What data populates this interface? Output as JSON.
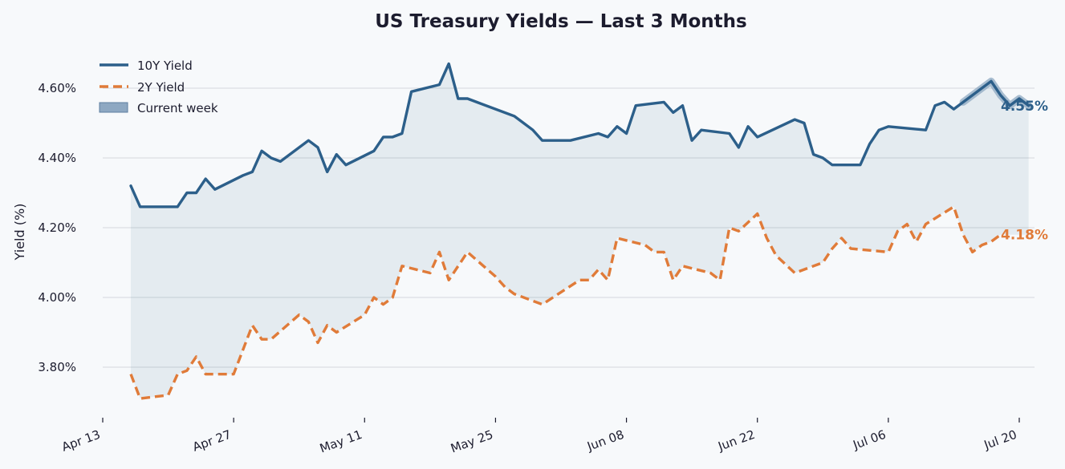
{
  "chart_data": {
    "type": "line",
    "title": "US Treasury Yields — Last 3 Months",
    "xlabel": "",
    "ylabel": "Yield (%)",
    "ylim": [
      3.665,
      4.705
    ],
    "xlim": [
      "2025-04-11",
      "2025-07-21"
    ],
    "x_ticks": [
      "2025-04-13",
      "2025-04-27",
      "2025-05-11",
      "2025-05-25",
      "2025-06-08",
      "2025-06-22",
      "2025-07-06",
      "2025-07-20"
    ],
    "x_tick_labels": [
      "Apr 13",
      "Apr 27",
      "May 11",
      "May 25",
      "Jun 08",
      "Jun 22",
      "Jul 06",
      "Jul 20"
    ],
    "y_ticks": [
      3.8,
      4.0,
      4.2,
      4.4,
      4.6
    ],
    "y_tick_labels": [
      "3.80%",
      "4.00%",
      "4.20%",
      "4.40%",
      "4.60%"
    ],
    "grid": "horizontal",
    "legend_position": "top-left",
    "shade_between_series": true,
    "series": [
      {
        "name": "10Y Yield",
        "color": "#2c5f8a",
        "style": "solid",
        "end_label": "4.55%",
        "points": [
          [
            "2025-04-16",
            4.32
          ],
          [
            "2025-04-17",
            4.26
          ],
          [
            "2025-04-18",
            4.26
          ],
          [
            "2025-04-21",
            4.26
          ],
          [
            "2025-04-22",
            4.3
          ],
          [
            "2025-04-23",
            4.3
          ],
          [
            "2025-04-24",
            4.34
          ],
          [
            "2025-04-25",
            4.31
          ],
          [
            "2025-04-28",
            4.35
          ],
          [
            "2025-04-29",
            4.36
          ],
          [
            "2025-04-30",
            4.42
          ],
          [
            "2025-05-01",
            4.4
          ],
          [
            "2025-05-02",
            4.39
          ],
          [
            "2025-05-05",
            4.45
          ],
          [
            "2025-05-06",
            4.43
          ],
          [
            "2025-05-07",
            4.36
          ],
          [
            "2025-05-08",
            4.41
          ],
          [
            "2025-05-09",
            4.38
          ],
          [
            "2025-05-12",
            4.42
          ],
          [
            "2025-05-13",
            4.46
          ],
          [
            "2025-05-14",
            4.46
          ],
          [
            "2025-05-15",
            4.47
          ],
          [
            "2025-05-16",
            4.59
          ],
          [
            "2025-05-19",
            4.61
          ],
          [
            "2025-05-20",
            4.67
          ],
          [
            "2025-05-21",
            4.57
          ],
          [
            "2025-05-22",
            4.57
          ],
          [
            "2025-05-23",
            4.56
          ],
          [
            "2025-05-27",
            4.52
          ],
          [
            "2025-05-28",
            4.5
          ],
          [
            "2025-05-29",
            4.48
          ],
          [
            "2025-05-30",
            4.45
          ],
          [
            "2025-06-02",
            4.45
          ],
          [
            "2025-06-05",
            4.47
          ],
          [
            "2025-06-06",
            4.46
          ],
          [
            "2025-06-07",
            4.49
          ],
          [
            "2025-06-08",
            4.47
          ],
          [
            "2025-06-09",
            4.55
          ],
          [
            "2025-06-12",
            4.56
          ],
          [
            "2025-06-13",
            4.53
          ],
          [
            "2025-06-14",
            4.55
          ],
          [
            "2025-06-15",
            4.45
          ],
          [
            "2025-06-16",
            4.48
          ],
          [
            "2025-06-19",
            4.47
          ],
          [
            "2025-06-20",
            4.43
          ],
          [
            "2025-06-21",
            4.49
          ],
          [
            "2025-06-22",
            4.46
          ],
          [
            "2025-06-26",
            4.51
          ],
          [
            "2025-06-27",
            4.5
          ],
          [
            "2025-06-28",
            4.41
          ],
          [
            "2025-06-29",
            4.4
          ],
          [
            "2025-06-30",
            4.38
          ],
          [
            "2025-07-03",
            4.38
          ],
          [
            "2025-07-04",
            4.44
          ],
          [
            "2025-07-05",
            4.48
          ],
          [
            "2025-07-06",
            4.49
          ],
          [
            "2025-07-10",
            4.48
          ],
          [
            "2025-07-11",
            4.55
          ],
          [
            "2025-07-12",
            4.56
          ],
          [
            "2025-07-13",
            4.54
          ],
          [
            "2025-07-14",
            4.56
          ],
          [
            "2025-07-17",
            4.62
          ],
          [
            "2025-07-18",
            4.58
          ],
          [
            "2025-07-19",
            4.55
          ],
          [
            "2025-07-20",
            4.57
          ],
          [
            "2025-07-21",
            4.55
          ]
        ]
      },
      {
        "name": "2Y Yield",
        "color": "#e07b39",
        "style": "dashed",
        "end_label": "4.18%",
        "points": [
          [
            "2025-04-16",
            3.78
          ],
          [
            "2025-04-17",
            3.71
          ],
          [
            "2025-04-20",
            3.72
          ],
          [
            "2025-04-21",
            3.78
          ],
          [
            "2025-04-22",
            3.79
          ],
          [
            "2025-04-23",
            3.83
          ],
          [
            "2025-04-24",
            3.78
          ],
          [
            "2025-04-27",
            3.78
          ],
          [
            "2025-04-28",
            3.85
          ],
          [
            "2025-04-29",
            3.92
          ],
          [
            "2025-04-30",
            3.88
          ],
          [
            "2025-05-01",
            3.88
          ],
          [
            "2025-05-04",
            3.95
          ],
          [
            "2025-05-05",
            3.93
          ],
          [
            "2025-05-06",
            3.87
          ],
          [
            "2025-05-07",
            3.92
          ],
          [
            "2025-05-08",
            3.9
          ],
          [
            "2025-05-11",
            3.95
          ],
          [
            "2025-05-12",
            4.0
          ],
          [
            "2025-05-13",
            3.98
          ],
          [
            "2025-05-14",
            4.0
          ],
          [
            "2025-05-15",
            4.09
          ],
          [
            "2025-05-18",
            4.07
          ],
          [
            "2025-05-19",
            4.13
          ],
          [
            "2025-05-20",
            4.05
          ],
          [
            "2025-05-22",
            4.13
          ],
          [
            "2025-05-25",
            4.06
          ],
          [
            "2025-05-26",
            4.03
          ],
          [
            "2025-05-27",
            4.01
          ],
          [
            "2025-05-30",
            3.98
          ],
          [
            "2025-06-03",
            4.05
          ],
          [
            "2025-06-04",
            4.05
          ],
          [
            "2025-06-05",
            4.08
          ],
          [
            "2025-06-06",
            4.05
          ],
          [
            "2025-06-07",
            4.17
          ],
          [
            "2025-06-10",
            4.15
          ],
          [
            "2025-06-11",
            4.13
          ],
          [
            "2025-06-12",
            4.13
          ],
          [
            "2025-06-13",
            4.05
          ],
          [
            "2025-06-14",
            4.09
          ],
          [
            "2025-06-17",
            4.07
          ],
          [
            "2025-06-18",
            4.05
          ],
          [
            "2025-06-19",
            4.2
          ],
          [
            "2025-06-20",
            4.19
          ],
          [
            "2025-06-22",
            4.24
          ],
          [
            "2025-06-23",
            4.17
          ],
          [
            "2025-06-24",
            4.12
          ],
          [
            "2025-06-26",
            4.07
          ],
          [
            "2025-06-29",
            4.1
          ],
          [
            "2025-06-30",
            4.14
          ],
          [
            "2025-07-01",
            4.17
          ],
          [
            "2025-07-02",
            4.14
          ],
          [
            "2025-07-06",
            4.13
          ],
          [
            "2025-07-07",
            4.19
          ],
          [
            "2025-07-08",
            4.21
          ],
          [
            "2025-07-09",
            4.16
          ],
          [
            "2025-07-10",
            4.21
          ],
          [
            "2025-07-13",
            4.26
          ],
          [
            "2025-07-14",
            4.18
          ],
          [
            "2025-07-15",
            4.13
          ],
          [
            "2025-07-16",
            4.15
          ],
          [
            "2025-07-17",
            4.16
          ],
          [
            "2025-07-18",
            4.18
          ]
        ]
      }
    ],
    "highlight": {
      "name": "Current week",
      "series": "10Y Yield",
      "start": "2025-07-14",
      "end": "2025-07-21",
      "color": "#8ea8c2"
    }
  }
}
